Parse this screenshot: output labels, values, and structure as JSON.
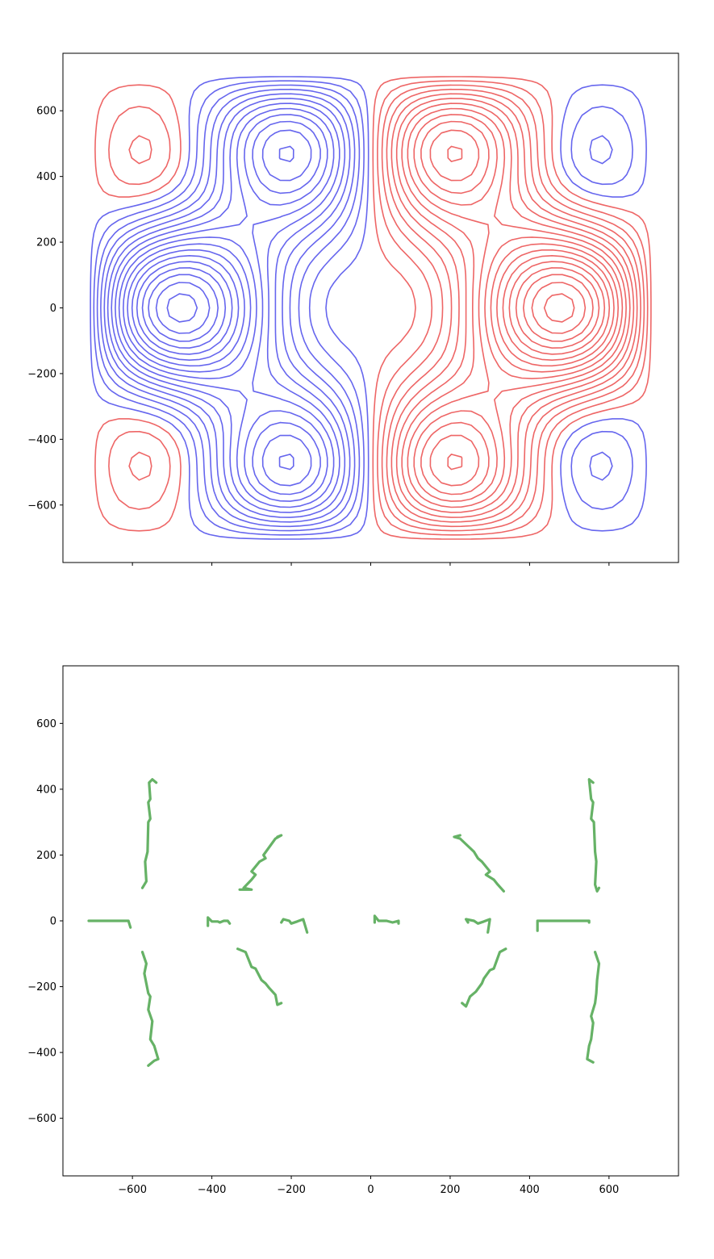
{
  "chart_data": [
    {
      "type": "contour",
      "title": "",
      "xlabel": "",
      "ylabel": "",
      "xlim": [
        -775,
        775
      ],
      "ylim": [
        -775,
        775
      ],
      "xticks": [
        -600,
        -400,
        -200,
        0,
        200,
        400,
        600
      ],
      "xticklabels_shown": false,
      "yticks": [
        -600,
        -400,
        -200,
        0,
        200,
        400,
        600
      ],
      "yticklabels": [
        "−600",
        "−400",
        "−200",
        "0",
        "200",
        "400",
        "600"
      ],
      "grid": false,
      "legend": "none",
      "field_domain": [
        -710,
        710
      ],
      "colors": {
        "negative": "#6666ee",
        "positive": "#ee6666"
      },
      "series": [
        {
          "values": [
            {
              "x": -120,
              "y": 0,
              "level": 0
            }
          ]
        }
      ]
    },
    {
      "type": "line",
      "title": "",
      "xlabel": "",
      "ylabel": "",
      "xlim": [
        -775,
        775
      ],
      "ylim": [
        -775,
        775
      ],
      "xticks": [
        -600,
        -400,
        -200,
        0,
        200,
        400,
        600
      ],
      "xticklabels": [
        "−600",
        "−400",
        "−200",
        "0",
        "200",
        "400",
        "600"
      ],
      "yticks": [
        -600,
        -400,
        -200,
        0,
        200,
        400,
        600
      ],
      "yticklabels": [
        "−600",
        "−400",
        "−200",
        "0",
        "200",
        "400",
        "600"
      ],
      "grid": false,
      "legend": "none",
      "color": "#66b266",
      "series": [
        {
          "points": [
            [
              -710,
              0
            ],
            [
              -700,
              0
            ],
            [
              -690,
              0
            ],
            [
              -680,
              0
            ],
            [
              -670,
              0
            ],
            [
              -660,
              0
            ],
            [
              -650,
              0
            ],
            [
              -640,
              0
            ],
            [
              -630,
              0
            ],
            [
              -620,
              0
            ],
            [
              -610,
              0
            ],
            [
              -605,
              -20
            ]
          ]
        },
        {
          "points": [
            [
              -575,
              100
            ],
            [
              -565,
              120
            ],
            [
              -568,
              180
            ],
            [
              -562,
              210
            ],
            [
              -560,
              300
            ],
            [
              -555,
              310
            ],
            [
              -560,
              360
            ],
            [
              -555,
              370
            ],
            [
              -558,
              420
            ],
            [
              -550,
              430
            ],
            [
              -540,
              420
            ]
          ]
        },
        {
          "points": [
            [
              -575,
              -95
            ],
            [
              -565,
              -130
            ],
            [
              -570,
              -160
            ],
            [
              -560,
              -220
            ],
            [
              -555,
              -230
            ],
            [
              -560,
              -270
            ],
            [
              -550,
              -305
            ],
            [
              -555,
              -360
            ],
            [
              -545,
              -380
            ],
            [
              -535,
              -420
            ],
            [
              -545,
              -425
            ],
            [
              -560,
              -440
            ]
          ]
        },
        {
          "points": [
            [
              -410,
              -15
            ],
            [
              -410,
              10
            ],
            [
              -400,
              -2
            ],
            [
              -385,
              -2
            ],
            [
              -380,
              -5
            ],
            [
              -370,
              0
            ],
            [
              -360,
              0
            ],
            [
              -355,
              -8
            ]
          ]
        },
        {
          "points": [
            [
              -330,
              95
            ],
            [
              -300,
              95
            ],
            [
              -320,
              100
            ],
            [
              -300,
              125
            ],
            [
              -290,
              140
            ],
            [
              -300,
              150
            ],
            [
              -280,
              180
            ],
            [
              -265,
              190
            ],
            [
              -270,
              200
            ],
            [
              -240,
              250
            ],
            [
              -225,
              260
            ],
            [
              -235,
              255
            ]
          ]
        },
        {
          "points": [
            [
              -335,
              -85
            ],
            [
              -315,
              -95
            ],
            [
              -300,
              -140
            ],
            [
              -290,
              -145
            ],
            [
              -275,
              -180
            ],
            [
              -265,
              -190
            ],
            [
              -255,
              -205
            ],
            [
              -240,
              -225
            ],
            [
              -235,
              -255
            ],
            [
              -225,
              -250
            ]
          ]
        },
        {
          "points": [
            [
              -225,
              -5
            ],
            [
              -220,
              5
            ],
            [
              -205,
              0
            ],
            [
              -200,
              -8
            ],
            [
              -185,
              -2
            ],
            [
              -170,
              5
            ],
            [
              -160,
              -35
            ]
          ]
        },
        {
          "points": [
            [
              10,
              -5
            ],
            [
              10,
              15
            ],
            [
              20,
              0
            ],
            [
              40,
              0
            ],
            [
              55,
              -5
            ],
            [
              70,
              0
            ],
            [
              70,
              -8
            ]
          ]
        },
        {
          "points": [
            [
              245,
              -5
            ],
            [
              240,
              5
            ],
            [
              260,
              0
            ],
            [
              270,
              -8
            ],
            [
              285,
              -2
            ],
            [
              300,
              5
            ],
            [
              295,
              -35
            ]
          ]
        },
        {
          "points": [
            [
              225,
              260
            ],
            [
              210,
              255
            ],
            [
              225,
              250
            ],
            [
              260,
              210
            ],
            [
              270,
              190
            ],
            [
              280,
              180
            ],
            [
              300,
              150
            ],
            [
              290,
              140
            ],
            [
              310,
              125
            ],
            [
              320,
              110
            ],
            [
              335,
              90
            ]
          ]
        },
        {
          "points": [
            [
              230,
              -250
            ],
            [
              240,
              -260
            ],
            [
              250,
              -230
            ],
            [
              265,
              -215
            ],
            [
              280,
              -190
            ],
            [
              285,
              -175
            ],
            [
              300,
              -150
            ],
            [
              310,
              -145
            ],
            [
              325,
              -95
            ],
            [
              340,
              -85
            ]
          ]
        },
        {
          "points": [
            [
              420,
              -30
            ],
            [
              420,
              0
            ],
            [
              430,
              0
            ],
            [
              440,
              0
            ],
            [
              450,
              0
            ],
            [
              460,
              0
            ],
            [
              470,
              0
            ],
            [
              480,
              0
            ],
            [
              490,
              0
            ],
            [
              500,
              0
            ],
            [
              520,
              0
            ],
            [
              550,
              0
            ],
            [
              550,
              -5
            ]
          ]
        },
        {
          "points": [
            [
              560,
              420
            ],
            [
              550,
              430
            ],
            [
              555,
              370
            ],
            [
              560,
              360
            ],
            [
              555,
              310
            ],
            [
              562,
              300
            ],
            [
              565,
              210
            ],
            [
              568,
              180
            ],
            [
              565,
              110
            ],
            [
              570,
              90
            ],
            [
              575,
              100
            ]
          ]
        },
        {
          "points": [
            [
              560,
              -430
            ],
            [
              545,
              -420
            ],
            [
              550,
              -380
            ],
            [
              555,
              -360
            ],
            [
              560,
              -310
            ],
            [
              555,
              -290
            ],
            [
              565,
              -250
            ],
            [
              568,
              -220
            ],
            [
              570,
              -180
            ],
            [
              575,
              -130
            ],
            [
              565,
              -95
            ]
          ]
        }
      ]
    }
  ]
}
